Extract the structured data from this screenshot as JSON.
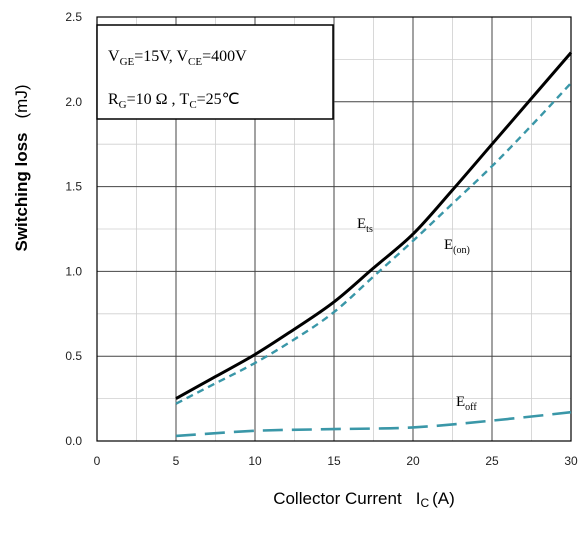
{
  "chart_data": {
    "type": "line",
    "xlabel": "Collector Current",
    "xlabel_symbol": "I",
    "xlabel_sub": "C",
    "xlabel_unit": "(A)",
    "ylabel": "Switching loss",
    "ylabel_unit": "(mJ)",
    "xlim": [
      0,
      30
    ],
    "ylim": [
      0,
      2.5
    ],
    "x_ticks": [
      "0",
      "5",
      "10",
      "15",
      "20",
      "25",
      "30"
    ],
    "y_ticks": [
      "0.0",
      "0.5",
      "1.0",
      "1.5",
      "2.0",
      "2.5"
    ],
    "grid": true,
    "conditions": {
      "line1": {
        "v1": "V",
        "s1": "GE",
        "t1": "=15V, V",
        "s2": "CE",
        "t2": "=400V"
      },
      "line2": {
        "v1": "R",
        "s1": "G",
        "t1": "=10 Ω , T",
        "s2": "C",
        "t2": "=25℃"
      }
    },
    "series": [
      {
        "name": "E",
        "name_sub": "ts",
        "style": "solid",
        "color": "#000000",
        "x": [
          5,
          7.5,
          10,
          12.5,
          15,
          17.5,
          20,
          22.5,
          25,
          27.5,
          30
        ],
        "y": [
          0.25,
          0.38,
          0.51,
          0.66,
          0.82,
          1.02,
          1.22,
          1.48,
          1.75,
          2.02,
          2.29
        ]
      },
      {
        "name": "E",
        "name_sub": "(on)",
        "style": "dashed",
        "color": "#3a97a8",
        "x": [
          5,
          7.5,
          10,
          12.5,
          15,
          17.5,
          20,
          22.5,
          25,
          27.5,
          30
        ],
        "y": [
          0.22,
          0.34,
          0.46,
          0.6,
          0.76,
          0.97,
          1.18,
          1.4,
          1.62,
          1.86,
          2.11
        ]
      },
      {
        "name": "E",
        "name_sub": "off",
        "style": "long-dashed",
        "color": "#3a97a8",
        "x": [
          5,
          10,
          15,
          20,
          25,
          30
        ],
        "y": [
          0.03,
          0.06,
          0.07,
          0.08,
          0.12,
          0.17
        ]
      }
    ]
  }
}
